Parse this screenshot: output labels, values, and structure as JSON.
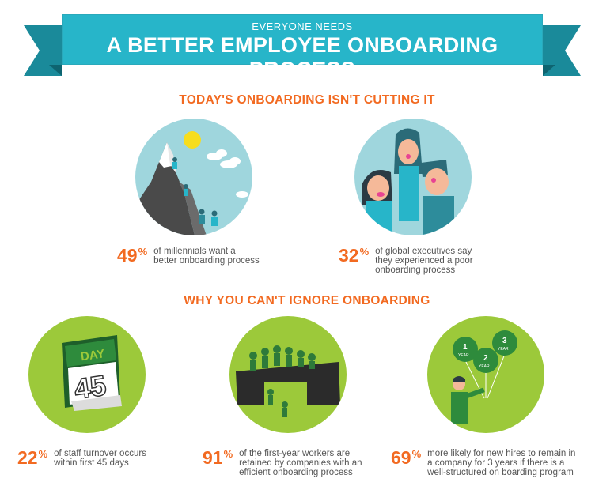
{
  "banner": {
    "subtitle": "EVERYONE NEEDS",
    "title": "A BETTER EMPLOYEE ONBOARDING PROCESS"
  },
  "sections": [
    {
      "heading": "TODAY'S ONBOARDING ISN'T CUTTING IT"
    },
    {
      "heading": "WHY YOU CAN'T IGNORE ONBOARDING"
    }
  ],
  "stats": [
    {
      "value": "49",
      "unit": "%",
      "lines": [
        "of millennials want a",
        "better onboarding process"
      ]
    },
    {
      "value": "32",
      "unit": "%",
      "lines": [
        "of global executives say",
        "they experienced a poor",
        "onboarding process"
      ]
    },
    {
      "value": "22",
      "unit": "%",
      "lines": [
        "of staff turnover occurs",
        "within first 45 days"
      ]
    },
    {
      "value": "91",
      "unit": "%",
      "lines": [
        "of the first-year workers are",
        "retained by companies with an",
        "efficient onboarding process"
      ]
    },
    {
      "value": "69",
      "unit": "%",
      "lines": [
        "more likely for new hires to remain in",
        "a company for 3 years if there is a",
        "well-structured on boarding program"
      ]
    }
  ],
  "calendar": {
    "label": "DAY",
    "number": "45"
  },
  "balloons": [
    {
      "number": "1",
      "label": "YEAR"
    },
    {
      "number": "2",
      "label": "YEAR"
    },
    {
      "number": "3",
      "label": "YEAR"
    }
  ],
  "colors": {
    "teal": "#27b5c9",
    "teal_dark": "#1a8a9a",
    "orange": "#f26a21",
    "lime": "#9cc93a",
    "light_blue": "#9fd6dd"
  }
}
